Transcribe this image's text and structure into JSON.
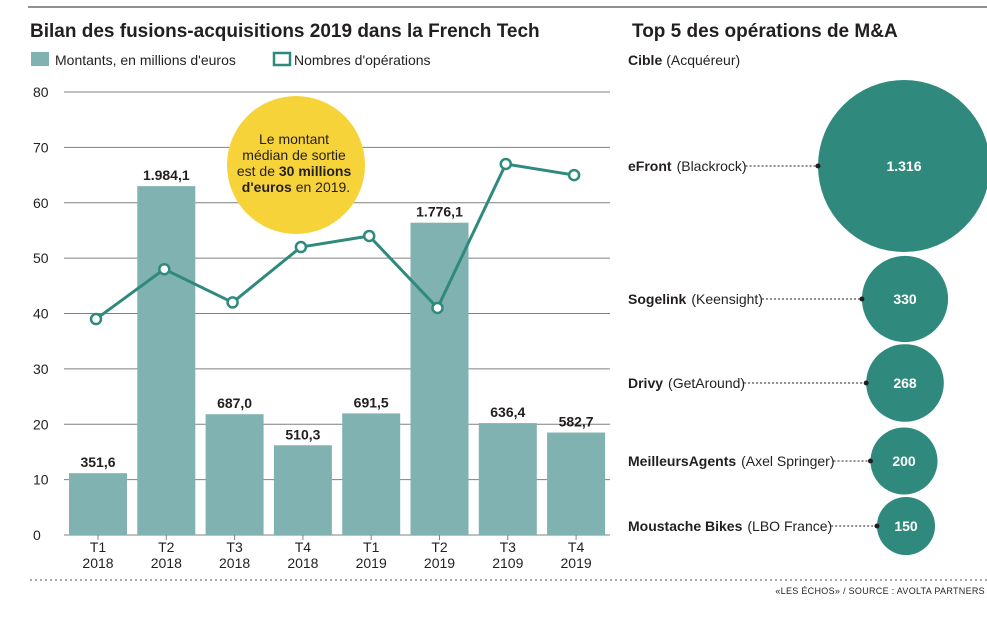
{
  "colors": {
    "bar": "#7fb2b0",
    "line": "#2f8a7d",
    "bubble": "#2f8a7d",
    "callout": "#f7d33a",
    "grid": "#808080",
    "text": "#231f20"
  },
  "chart_data": [
    {
      "type": "bar",
      "title": "Bilan des fusions-acquisitions 2019 dans la French Tech",
      "legend": [
        "Montants, en millions d'euros",
        "Nombres d'opérations"
      ],
      "legend_placement": "top-left",
      "categories": [
        {
          "line1": "T1",
          "line2": "2018"
        },
        {
          "line1": "T2",
          "line2": "2018"
        },
        {
          "line1": "T3",
          "line2": "2018"
        },
        {
          "line1": "T4",
          "line2": "2018"
        },
        {
          "line1": "T1",
          "line2": "2019"
        },
        {
          "line1": "T2",
          "line2": "2019"
        },
        {
          "line1": "T3",
          "line2": "2109"
        },
        {
          "line1": "T4",
          "line2": "2019"
        }
      ],
      "series": [
        {
          "name": "Montants, en millions d'euros",
          "type": "bar",
          "values": [
            351.6,
            1984.1,
            687.0,
            510.3,
            691.5,
            1776.1,
            636.4,
            582.7
          ],
          "labels": [
            "351,6",
            "1.984,1",
            "687,0",
            "510,3",
            "691,5",
            "1.776,1",
            "636,4",
            "582,7"
          ]
        },
        {
          "name": "Nombres d'opérations",
          "type": "line",
          "values": [
            39,
            48,
            42,
            52,
            54,
            41,
            67,
            65
          ]
        }
      ],
      "ylim": [
        0,
        80
      ],
      "yticks": [
        0,
        10,
        20,
        30,
        40,
        50,
        60,
        70,
        80
      ],
      "grid": true,
      "callout": {
        "line1": "Le montant",
        "line2": "médian de sortie",
        "line3_pre": "est de ",
        "line3_bold": "30 millions",
        "line4_bold": "d'euros",
        "line4_post": " en 2019."
      }
    },
    {
      "type": "bubble",
      "title": "Top 5 des opérations de M&A",
      "header_bold": "Cible",
      "header_regular": "(Acquéreur)",
      "items": [
        {
          "target": "eFront",
          "acquirer": "(Blackrock)",
          "value": 1316,
          "label": "1.316"
        },
        {
          "target": "Sogelink",
          "acquirer": "(Keensight)",
          "value": 330,
          "label": "330"
        },
        {
          "target": "Drivy",
          "acquirer": "(GetAround)",
          "value": 268,
          "label": "268"
        },
        {
          "target": "MeilleursAgents",
          "acquirer": "(Axel Springer)",
          "value": 200,
          "label": "200"
        },
        {
          "target": "Moustache Bikes",
          "acquirer": "(LBO France)",
          "value": 150,
          "label": "150"
        }
      ]
    }
  ],
  "source": "«LES ÉCHOS» / SOURCE : AVOLTA PARTNERS"
}
